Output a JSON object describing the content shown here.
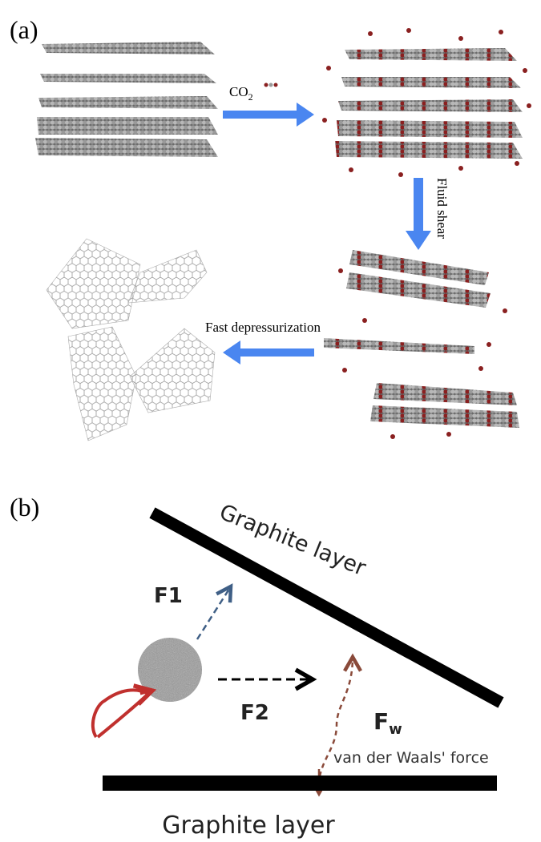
{
  "panel_a": {
    "label": "(a)",
    "step1": {
      "text": "CO",
      "subscript": "2"
    },
    "step2": "Fluid shear",
    "step3": "Fast depressurization"
  },
  "panel_b": {
    "label": "(b)",
    "top_layer": "Graphite layer",
    "f1": "F1",
    "f2": "F2",
    "fw": {
      "text": "F",
      "subscript": "w"
    },
    "fw_caption": "van der Waals' force",
    "bottom_layer": "Graphite layer"
  }
}
